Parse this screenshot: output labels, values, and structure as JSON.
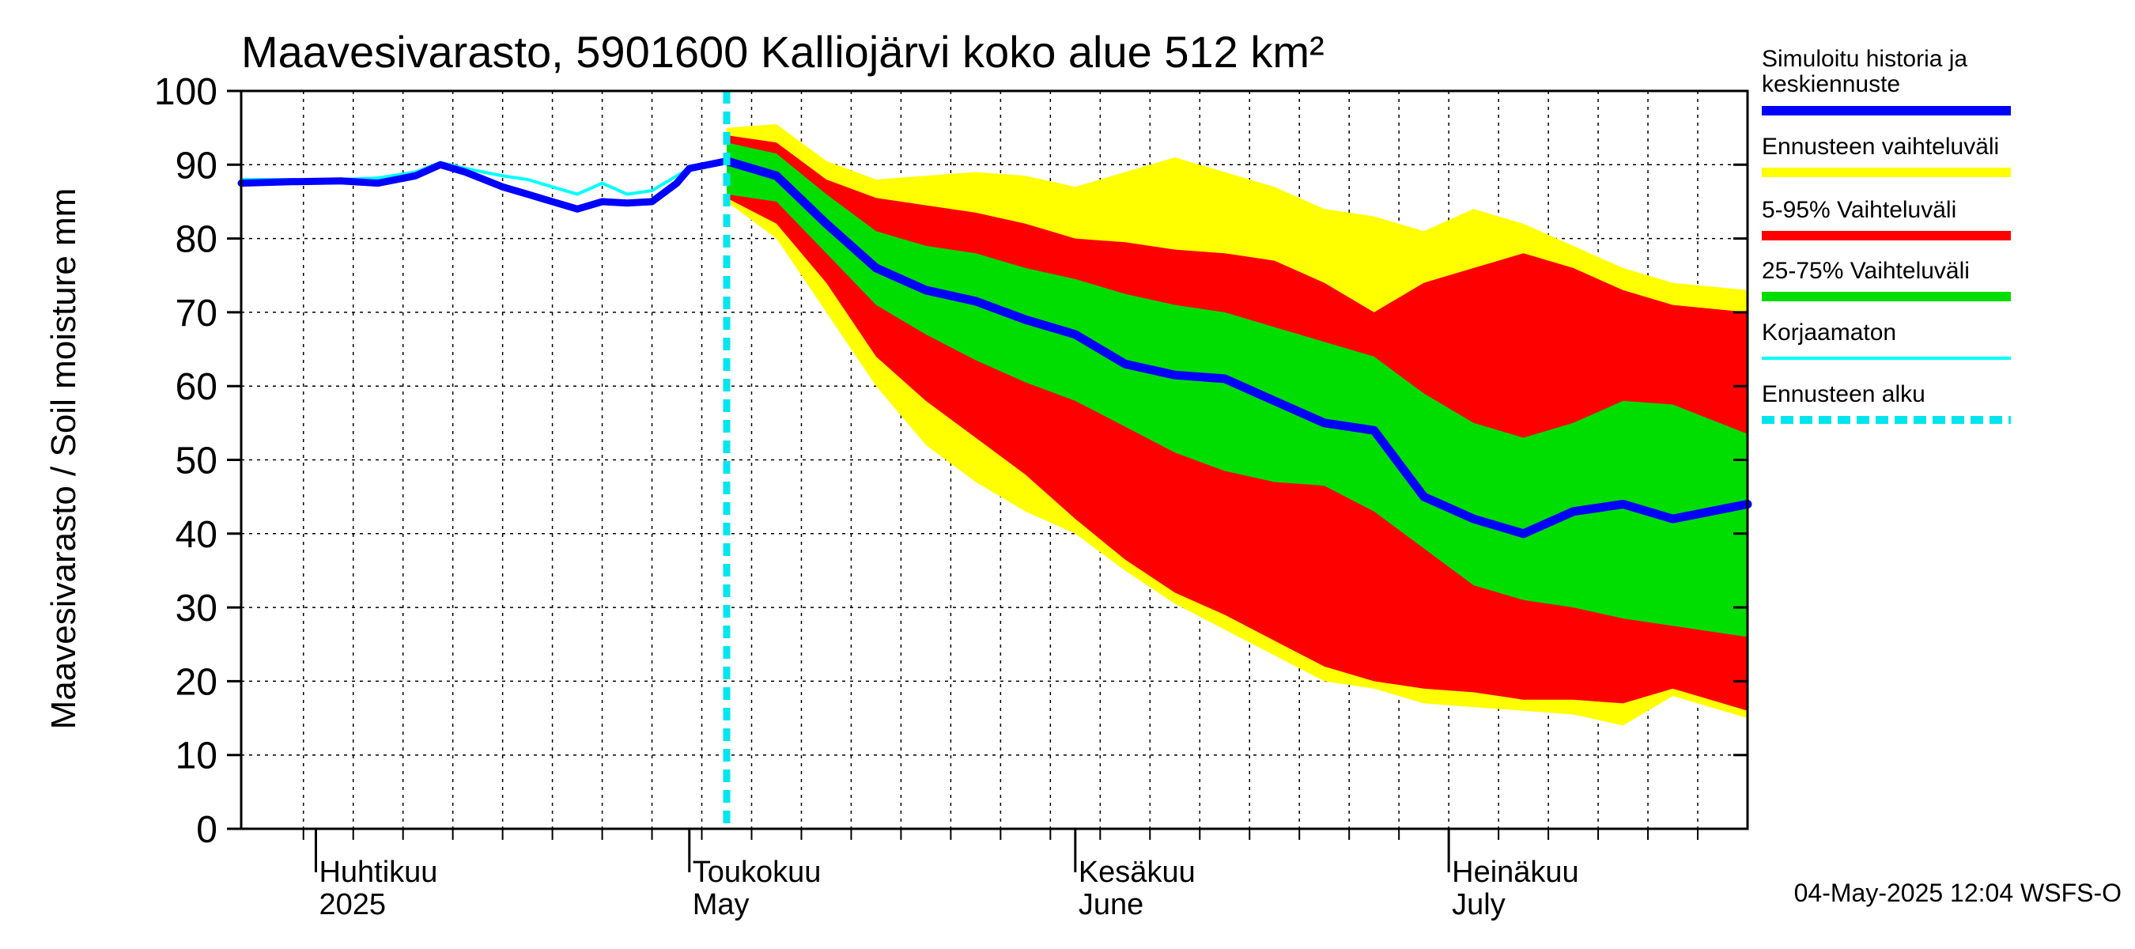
{
  "chart_data": {
    "type": "area",
    "title": "Maavesivarasto, 5901600 Kalliojärvi koko alue 512 km²",
    "ylabel": "Maavesivarasto / Soil moisture   mm",
    "ylim": [
      0,
      100
    ],
    "yticks": [
      "0",
      "10",
      "20",
      "30",
      "40",
      "50",
      "60",
      "70",
      "80",
      "90",
      "100"
    ],
    "x_start": "2025-03-26",
    "x_end": "2025-07-25",
    "forecast_start": "2025-05-04",
    "month_labels": [
      {
        "date": "2025-04-01",
        "fi": "Huhtikuu",
        "en": "2025"
      },
      {
        "date": "2025-05-01",
        "fi": "Toukokuu",
        "en": "May"
      },
      {
        "date": "2025-06-01",
        "fi": "Kesäkuu",
        "en": "June"
      },
      {
        "date": "2025-07-01",
        "fi": "Heinäkuu",
        "en": "July"
      }
    ],
    "legend": [
      {
        "label": "Simuloitu historia ja keskiennuste",
        "color": "#0000ff"
      },
      {
        "label": "Ennusteen vaihteluväli",
        "color": "#ffff00"
      },
      {
        "label": "5-95% Vaihteluväli",
        "color": "#ff0000"
      },
      {
        "label": "25-75% Vaihteluväli",
        "color": "#00dd00"
      },
      {
        "label": "Korjaamaton",
        "color": "#00ffff"
      },
      {
        "label": "Ennusteen alku",
        "color": "#00e5ee"
      }
    ],
    "colors": {
      "history": "#0000ff",
      "range_full": "#ffff00",
      "range_5_95": "#ff0000",
      "range_25_75": "#00dd00",
      "uncorrected": "#00ffff",
      "forecast_start": "#00e5ee"
    },
    "history": {
      "x": [
        "2025-03-26",
        "2025-03-30",
        "2025-04-03",
        "2025-04-06",
        "2025-04-09",
        "2025-04-11",
        "2025-04-13",
        "2025-04-16",
        "2025-04-18",
        "2025-04-20",
        "2025-04-22",
        "2025-04-24",
        "2025-04-26",
        "2025-04-28",
        "2025-04-30",
        "2025-05-01",
        "2025-05-04"
      ],
      "y": [
        87.5,
        87.7,
        87.8,
        87.5,
        88.5,
        90.0,
        89.0,
        87.0,
        86.0,
        85.0,
        84.0,
        85.0,
        84.8,
        85.0,
        87.5,
        89.5,
        90.5
      ]
    },
    "uncorrected": {
      "x": [
        "2025-03-26",
        "2025-03-30",
        "2025-04-03",
        "2025-04-06",
        "2025-04-09",
        "2025-04-11",
        "2025-04-13",
        "2025-04-16",
        "2025-04-18",
        "2025-04-20",
        "2025-04-22",
        "2025-04-24",
        "2025-04-26",
        "2025-04-28",
        "2025-04-30",
        "2025-05-01",
        "2025-05-04"
      ],
      "y": [
        88.0,
        88.0,
        88.0,
        88.2,
        89.0,
        90.3,
        89.5,
        88.5,
        88.0,
        87.0,
        86.0,
        87.5,
        86.0,
        86.5,
        88.5,
        89.5,
        90.5
      ]
    },
    "forecast": {
      "x": [
        "2025-05-04",
        "2025-05-08",
        "2025-05-12",
        "2025-05-16",
        "2025-05-20",
        "2025-05-24",
        "2025-05-28",
        "2025-06-01",
        "2025-06-05",
        "2025-06-09",
        "2025-06-13",
        "2025-06-17",
        "2025-06-21",
        "2025-06-25",
        "2025-06-29",
        "2025-07-03",
        "2025-07-07",
        "2025-07-11",
        "2025-07-15",
        "2025-07-19",
        "2025-07-25"
      ],
      "median": [
        90.5,
        88.5,
        82.0,
        76.0,
        73.0,
        71.5,
        69.0,
        67.0,
        63.0,
        61.5,
        61.0,
        58.0,
        55.0,
        54.0,
        45.0,
        42.0,
        40.0,
        43.0,
        44.0,
        42.0,
        44.0
      ],
      "p25": [
        86.0,
        85.0,
        78.0,
        71.0,
        67.0,
        63.5,
        60.5,
        58.0,
        54.5,
        51.0,
        48.5,
        47.0,
        46.5,
        43.0,
        38.0,
        33.0,
        31.0,
        30.0,
        28.5,
        27.5,
        26.0
      ],
      "p75": [
        93.0,
        91.5,
        86.0,
        81.0,
        79.0,
        78.0,
        76.0,
        74.5,
        72.5,
        71.0,
        70.0,
        68.0,
        66.0,
        64.0,
        59.0,
        55.0,
        53.0,
        55.0,
        58.0,
        57.5,
        53.5
      ],
      "p5": [
        85.5,
        82.0,
        74.0,
        64.0,
        58.0,
        53.0,
        48.0,
        42.0,
        36.5,
        32.0,
        29.0,
        25.5,
        22.0,
        20.0,
        19.0,
        18.5,
        17.5,
        17.5,
        17.0,
        19.0,
        16.0
      ],
      "p95": [
        94.0,
        93.0,
        88.0,
        85.5,
        84.5,
        83.5,
        82.0,
        80.0,
        79.5,
        78.5,
        78.0,
        77.0,
        74.0,
        70.0,
        74.0,
        76.0,
        78.0,
        76.0,
        73.0,
        71.0,
        70.0
      ],
      "min": [
        85.0,
        80.0,
        70.0,
        60.0,
        52.0,
        47.0,
        43.0,
        40.0,
        35.0,
        30.5,
        27.0,
        23.5,
        20.0,
        19.0,
        17.0,
        16.5,
        16.0,
        15.5,
        14.0,
        18.0,
        15.0
      ],
      "max": [
        95.0,
        95.5,
        90.5,
        88.0,
        88.5,
        89.0,
        88.5,
        87.0,
        89.0,
        91.0,
        89.0,
        87.0,
        84.0,
        83.0,
        81.0,
        84.0,
        82.0,
        79.0,
        76.0,
        74.0,
        73.0
      ]
    }
  },
  "footer": "04-May-2025 12:04 WSFS-O"
}
